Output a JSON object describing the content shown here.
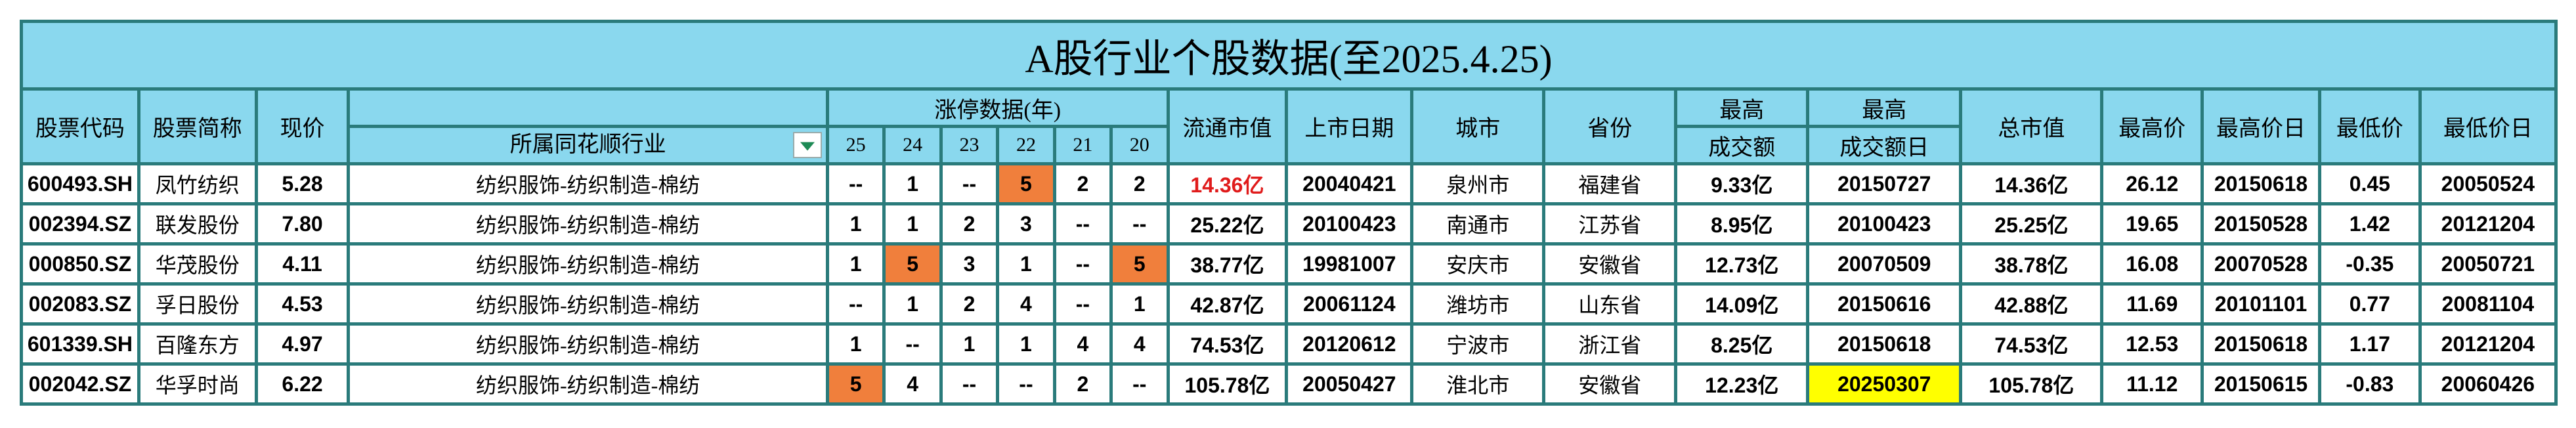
{
  "title": "A股行业个股数据(至2025.4.25)",
  "headers": {
    "code": "股票代码",
    "name": "股票简称",
    "price": "现价",
    "industry": "所属同花顺行业",
    "limit_up_group": "涨停数据(年)",
    "years": [
      "25",
      "24",
      "23",
      "22",
      "21",
      "20"
    ],
    "float_cap": "流通市值",
    "list_date": "上市日期",
    "city": "城市",
    "province": "省份",
    "max_volume_top": "最高",
    "max_volume_bottom": "成交额",
    "max_volume_date_top": "最高",
    "max_volume_date_bottom": "成交额日",
    "total_cap": "总市值",
    "high_price": "最高价",
    "high_date": "最高价日",
    "low_price": "最低价",
    "low_date": "最低价日"
  },
  "colors": {
    "header_bg": "#8ad8ee",
    "border": "#2a7b7b",
    "highlight_orange": "#f07f3c",
    "highlight_yellow": "#ffff00",
    "red_text": "#e01b1b",
    "filter_arrow": "#1d8a55"
  },
  "rows": [
    {
      "code": "600493.SH",
      "name": "凤竹纺织",
      "price": "5.28",
      "industry": "纺织服饰-纺织制造-棉纺",
      "y25": "--",
      "y24": "1",
      "y23": "--",
      "y22": "5",
      "y21": "2",
      "y20": "2",
      "float_cap": "14.36亿",
      "list_date": "20040421",
      "city": "泉州市",
      "province": "福建省",
      "max_volume": "9.33亿",
      "max_volume_date": "20150727",
      "total_cap": "14.36亿",
      "high_price": "26.12",
      "high_date": "20150618",
      "low_price": "0.45",
      "low_date": "20050524"
    },
    {
      "code": "002394.SZ",
      "name": "联发股份",
      "price": "7.80",
      "industry": "纺织服饰-纺织制造-棉纺",
      "y25": "1",
      "y24": "1",
      "y23": "2",
      "y22": "3",
      "y21": "--",
      "y20": "--",
      "float_cap": "25.22亿",
      "list_date": "20100423",
      "city": "南通市",
      "province": "江苏省",
      "max_volume": "8.95亿",
      "max_volume_date": "20100423",
      "total_cap": "25.25亿",
      "high_price": "19.65",
      "high_date": "20150528",
      "low_price": "1.42",
      "low_date": "20121204"
    },
    {
      "code": "000850.SZ",
      "name": "华茂股份",
      "price": "4.11",
      "industry": "纺织服饰-纺织制造-棉纺",
      "y25": "1",
      "y24": "5",
      "y23": "3",
      "y22": "1",
      "y21": "--",
      "y20": "5",
      "float_cap": "38.77亿",
      "list_date": "19981007",
      "city": "安庆市",
      "province": "安徽省",
      "max_volume": "12.73亿",
      "max_volume_date": "20070509",
      "total_cap": "38.78亿",
      "high_price": "16.08",
      "high_date": "20070528",
      "low_price": "-0.35",
      "low_date": "20050721"
    },
    {
      "code": "002083.SZ",
      "name": "孚日股份",
      "price": "4.53",
      "industry": "纺织服饰-纺织制造-棉纺",
      "y25": "--",
      "y24": "1",
      "y23": "2",
      "y22": "4",
      "y21": "--",
      "y20": "1",
      "float_cap": "42.87亿",
      "list_date": "20061124",
      "city": "潍坊市",
      "province": "山东省",
      "max_volume": "14.09亿",
      "max_volume_date": "20150616",
      "total_cap": "42.88亿",
      "high_price": "11.69",
      "high_date": "20101101",
      "low_price": "0.77",
      "low_date": "20081104"
    },
    {
      "code": "601339.SH",
      "name": "百隆东方",
      "price": "4.97",
      "industry": "纺织服饰-纺织制造-棉纺",
      "y25": "1",
      "y24": "--",
      "y23": "1",
      "y22": "1",
      "y21": "4",
      "y20": "4",
      "float_cap": "74.53亿",
      "list_date": "20120612",
      "city": "宁波市",
      "province": "浙江省",
      "max_volume": "8.25亿",
      "max_volume_date": "20150618",
      "total_cap": "74.53亿",
      "high_price": "12.53",
      "high_date": "20150618",
      "low_price": "1.17",
      "low_date": "20121204"
    },
    {
      "code": "002042.SZ",
      "name": "华孚时尚",
      "price": "6.22",
      "industry": "纺织服饰-纺织制造-棉纺",
      "y25": "5",
      "y24": "4",
      "y23": "--",
      "y22": "--",
      "y21": "2",
      "y20": "--",
      "float_cap": "105.78亿",
      "list_date": "20050427",
      "city": "淮北市",
      "province": "安徽省",
      "max_volume": "12.23亿",
      "max_volume_date": "20250307",
      "total_cap": "105.78亿",
      "high_price": "11.12",
      "high_date": "20150615",
      "low_price": "-0.83",
      "low_date": "20060426"
    }
  ]
}
